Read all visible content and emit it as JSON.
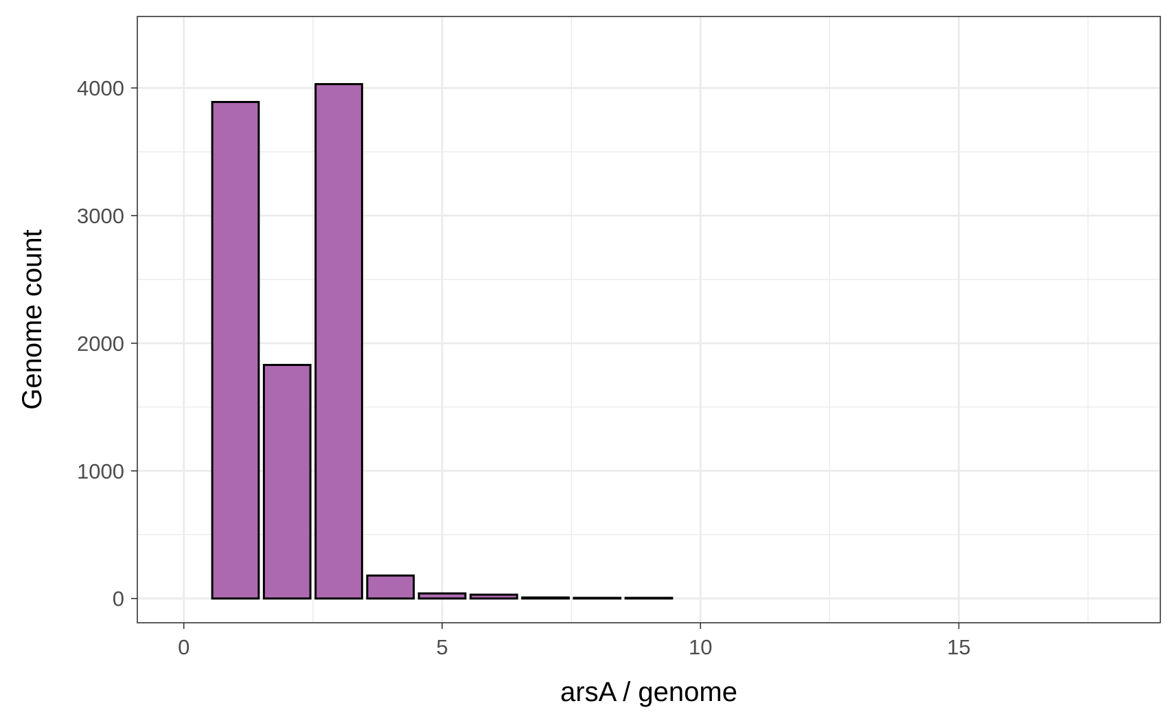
{
  "chart_data": {
    "type": "bar",
    "title": "",
    "xlabel": "arsA / genome",
    "ylabel": "Genome count",
    "xlim": [
      -0.9,
      18.9
    ],
    "ylim": [
      -190,
      4560
    ],
    "x_ticks": [
      0,
      5,
      10,
      15
    ],
    "x_minor": [
      2.5,
      7.5,
      12.5,
      17.5
    ],
    "y_ticks": [
      0,
      1000,
      2000,
      3000,
      4000
    ],
    "y_minor": [
      500,
      1500,
      2500,
      3500
    ],
    "grid": true,
    "bar_width": 0.9,
    "x": [
      1,
      2,
      3,
      4,
      5,
      6,
      7,
      8,
      9
    ],
    "values": [
      3890,
      1830,
      4030,
      180,
      40,
      30,
      8,
      5,
      5
    ],
    "colors": {
      "fill": "#ad69af",
      "stroke": "#000000",
      "grid": "#ebebeb",
      "panel_border": "#333333"
    }
  }
}
